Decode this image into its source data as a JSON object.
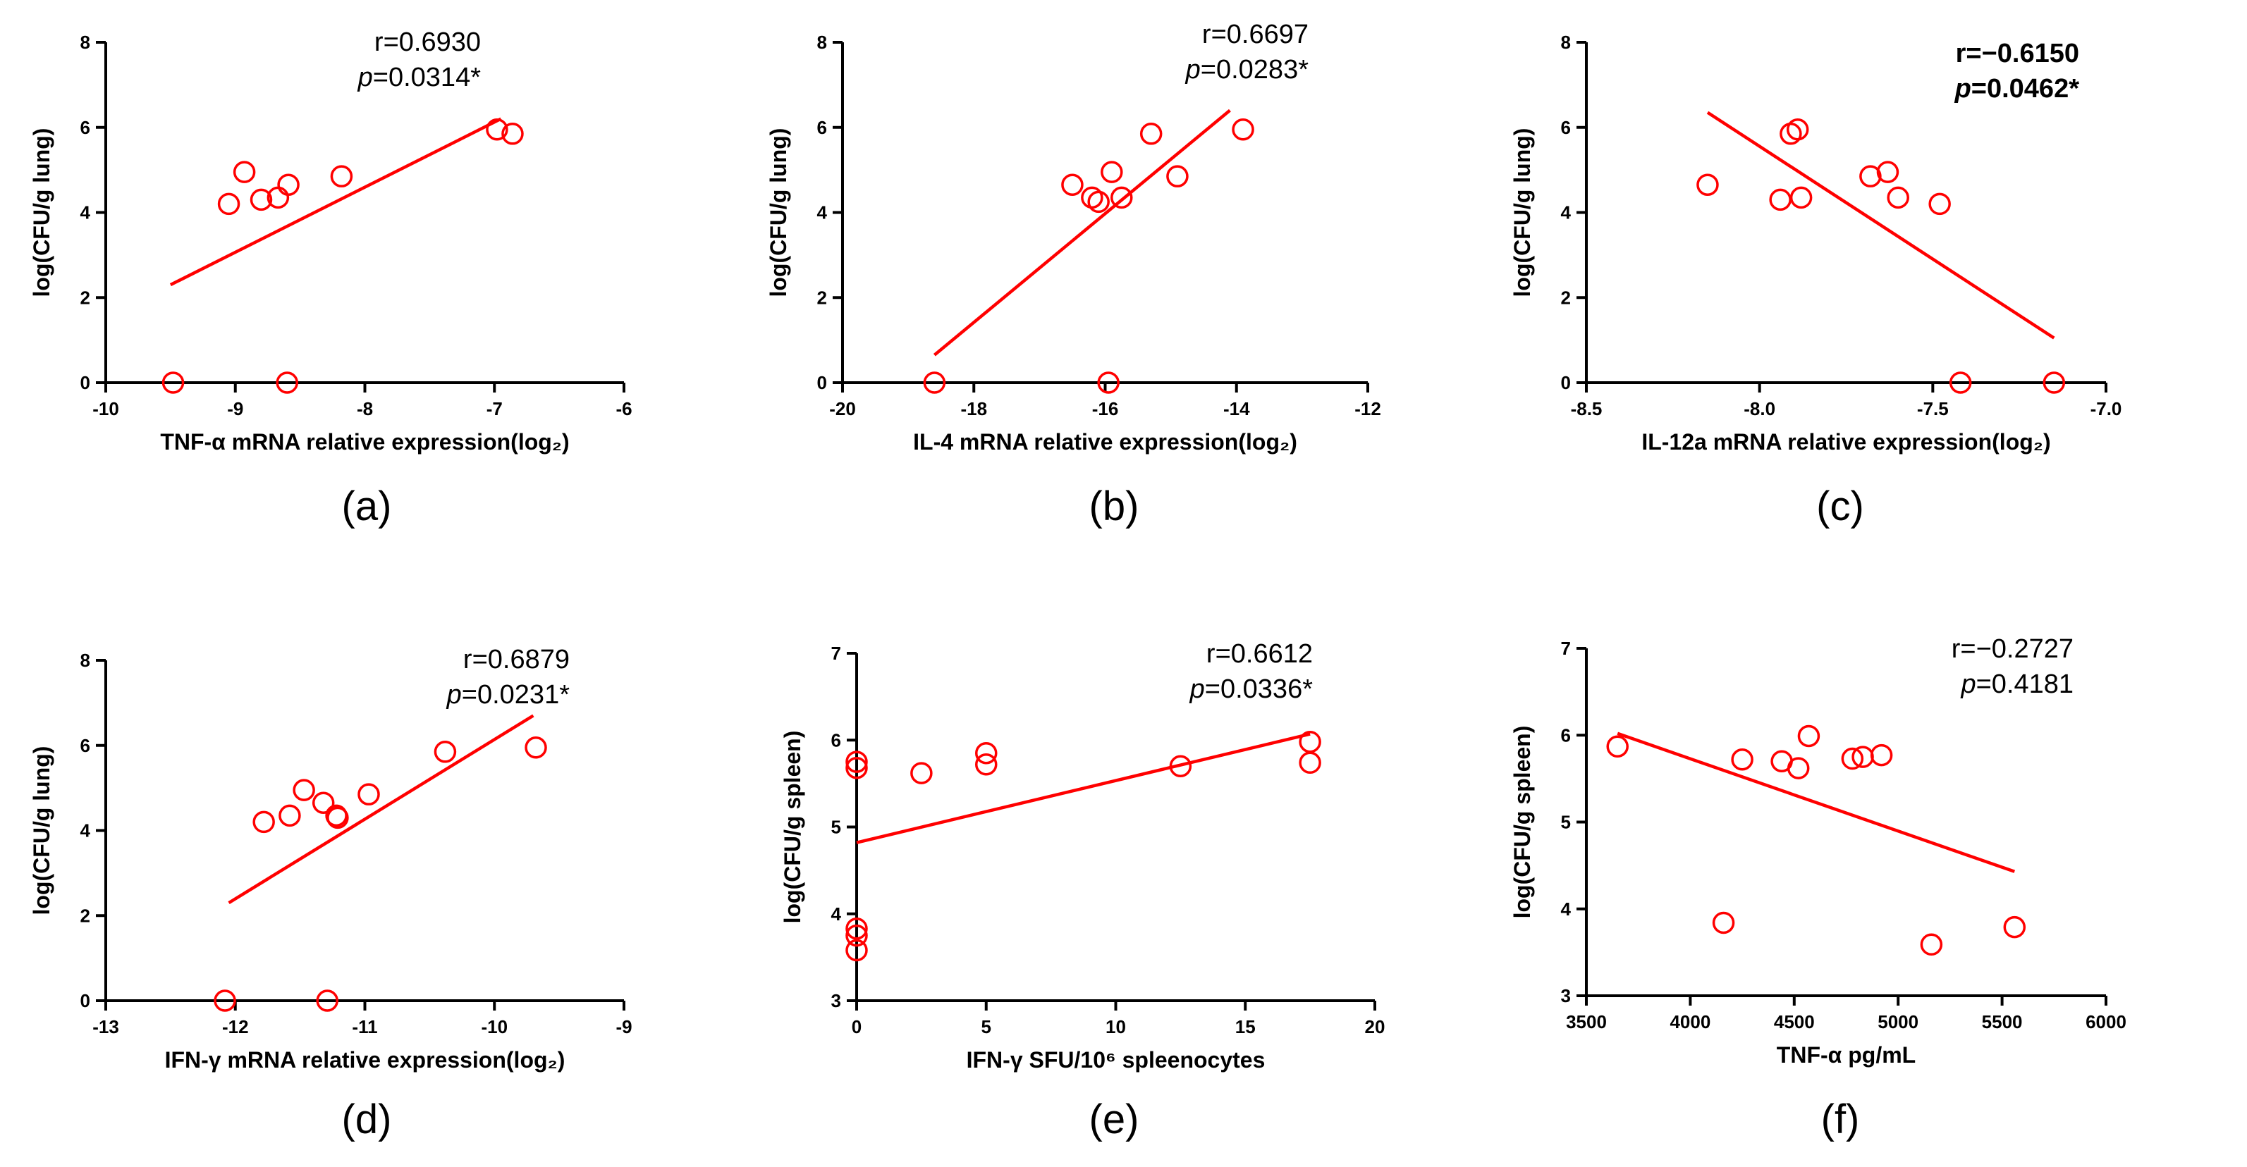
{
  "chart_data": [
    {
      "type": "scatter",
      "panel_label": "(a)",
      "xlabel": "TNF-α mRNA relative expression(log₂)",
      "ylabel": "log(CFU/g lung)",
      "xlim": [
        -10,
        -6
      ],
      "ylim": [
        0,
        8
      ],
      "xticks": [
        -10,
        -9,
        -8,
        -7,
        -6
      ],
      "yticks": [
        0,
        2,
        4,
        6,
        8
      ],
      "stats": {
        "r": "r=0.6930",
        "p_prefix": "p",
        "p_value": "=0.0314*",
        "bold": false
      },
      "points": [
        {
          "x": -9.48,
          "y": 0.0
        },
        {
          "x": -9.05,
          "y": 4.2
        },
        {
          "x": -8.93,
          "y": 4.95
        },
        {
          "x": -8.8,
          "y": 4.3
        },
        {
          "x": -8.67,
          "y": 4.35
        },
        {
          "x": -8.59,
          "y": 4.65
        },
        {
          "x": -8.6,
          "y": 0.0
        },
        {
          "x": -8.18,
          "y": 4.85
        },
        {
          "x": -6.98,
          "y": 5.95
        },
        {
          "x": -6.86,
          "y": 5.85
        }
      ],
      "fit": {
        "x": [
          -9.5,
          -6.95
        ],
        "y": [
          2.3,
          6.2
        ]
      }
    },
    {
      "type": "scatter",
      "panel_label": "(b)",
      "xlabel": "IL-4 mRNA relative expression(log₂)",
      "ylabel": "log(CFU/g lung)",
      "xlim": [
        -20,
        -12
      ],
      "ylim": [
        0,
        8
      ],
      "xticks": [
        -20,
        -18,
        -16,
        -14,
        -12
      ],
      "yticks": [
        0,
        2,
        4,
        6,
        8
      ],
      "stats": {
        "r": "r=0.6697",
        "p_prefix": "p",
        "p_value": "=0.0283*",
        "bold": false
      },
      "points": [
        {
          "x": -18.6,
          "y": 0.0
        },
        {
          "x": -16.5,
          "y": 4.65
        },
        {
          "x": -16.2,
          "y": 4.35
        },
        {
          "x": -16.1,
          "y": 4.25
        },
        {
          "x": -15.9,
          "y": 4.95
        },
        {
          "x": -15.95,
          "y": 0.0
        },
        {
          "x": -15.75,
          "y": 4.35
        },
        {
          "x": -15.3,
          "y": 5.85
        },
        {
          "x": -14.9,
          "y": 4.85
        },
        {
          "x": -13.9,
          "y": 5.95
        }
      ],
      "fit": {
        "x": [
          -18.6,
          -14.1
        ],
        "y": [
          0.65,
          6.4
        ]
      }
    },
    {
      "type": "scatter",
      "panel_label": "(c)",
      "xlabel": "IL-12a mRNA relative expression(log₂)",
      "ylabel": "log(CFU/g lung)",
      "xlim": [
        -8.5,
        -7.0
      ],
      "ylim": [
        0,
        8
      ],
      "xticks": [
        -8.5,
        -8.0,
        -7.5,
        -7.0
      ],
      "xtick_labels": [
        "-8.5",
        "-8.0",
        "-7.5",
        "-7.0"
      ],
      "yticks": [
        0,
        2,
        4,
        6,
        8
      ],
      "stats": {
        "r": "r=−0.6150",
        "p_prefix": "p",
        "p_value": "=0.0462*",
        "bold": true
      },
      "points": [
        {
          "x": -8.15,
          "y": 4.65
        },
        {
          "x": -7.94,
          "y": 4.3
        },
        {
          "x": -7.91,
          "y": 5.85
        },
        {
          "x": -7.89,
          "y": 5.95
        },
        {
          "x": -7.88,
          "y": 4.35
        },
        {
          "x": -7.68,
          "y": 4.85
        },
        {
          "x": -7.63,
          "y": 4.95
        },
        {
          "x": -7.6,
          "y": 4.35
        },
        {
          "x": -7.48,
          "y": 4.2
        },
        {
          "x": -7.42,
          "y": 0.0
        },
        {
          "x": -7.15,
          "y": 0.0
        }
      ],
      "fit": {
        "x": [
          -8.15,
          -7.15
        ],
        "y": [
          6.35,
          1.05
        ]
      }
    },
    {
      "type": "scatter",
      "panel_label": "(d)",
      "xlabel": "IFN-γ mRNA relative expression(log₂)",
      "ylabel": "log(CFU/g lung)",
      "xlim": [
        -13,
        -9
      ],
      "ylim": [
        0,
        8
      ],
      "xticks": [
        -13,
        -12,
        -11,
        -10,
        -9
      ],
      "yticks": [
        0,
        2,
        4,
        6,
        8
      ],
      "stats": {
        "r": "r=0.6879",
        "p_prefix": "p",
        "p_value": "=0.0231*",
        "bold": false
      },
      "points": [
        {
          "x": -12.08,
          "y": 0.0
        },
        {
          "x": -11.78,
          "y": 4.2
        },
        {
          "x": -11.58,
          "y": 4.35
        },
        {
          "x": -11.47,
          "y": 4.95
        },
        {
          "x": -11.32,
          "y": 4.65
        },
        {
          "x": -11.29,
          "y": 0.0
        },
        {
          "x": -11.22,
          "y": 4.35
        },
        {
          "x": -11.21,
          "y": 4.3
        },
        {
          "x": -10.97,
          "y": 4.85
        },
        {
          "x": -10.38,
          "y": 5.85
        },
        {
          "x": -9.68,
          "y": 5.95
        }
      ],
      "fit": {
        "x": [
          -12.05,
          -9.7
        ],
        "y": [
          2.3,
          6.7
        ]
      }
    },
    {
      "type": "scatter",
      "panel_label": "(e)",
      "xlabel": "IFN-γ SFU/10⁶ spleenocytes",
      "ylabel": "log(CFU/g spleen)",
      "xlim": [
        0,
        20
      ],
      "ylim": [
        3,
        7
      ],
      "xticks": [
        0,
        5,
        10,
        15,
        20
      ],
      "yticks": [
        3,
        4,
        5,
        6,
        7
      ],
      "stats": {
        "r": "r=0.6612",
        "p_prefix": "p",
        "p_value": "=0.0336*",
        "bold": false
      },
      "points": [
        {
          "x": 0,
          "y": 5.75
        },
        {
          "x": 0,
          "y": 5.68
        },
        {
          "x": 0,
          "y": 3.83
        },
        {
          "x": 0,
          "y": 3.75
        },
        {
          "x": 0,
          "y": 3.58
        },
        {
          "x": 2.5,
          "y": 5.62
        },
        {
          "x": 5,
          "y": 5.85
        },
        {
          "x": 5,
          "y": 5.72
        },
        {
          "x": 12.5,
          "y": 5.7
        },
        {
          "x": 17.5,
          "y": 5.98
        },
        {
          "x": 17.5,
          "y": 5.74
        }
      ],
      "fit": {
        "x": [
          0,
          17.5
        ],
        "y": [
          4.82,
          6.07
        ]
      }
    },
    {
      "type": "scatter",
      "panel_label": "(f)",
      "xlabel": "TNF-α pg/mL",
      "ylabel": "log(CFU/g spleen)",
      "xlim": [
        3500,
        6000
      ],
      "ylim": [
        3,
        7
      ],
      "xticks": [
        3500,
        4000,
        4500,
        5000,
        5500,
        6000
      ],
      "yticks": [
        3,
        4,
        5,
        6,
        7
      ],
      "stats": {
        "r": "r=−0.2727",
        "p_prefix": "p",
        "p_value": "=0.4181",
        "bold": false
      },
      "points": [
        {
          "x": 3650,
          "y": 5.87
        },
        {
          "x": 4160,
          "y": 3.84
        },
        {
          "x": 4250,
          "y": 5.72
        },
        {
          "x": 4440,
          "y": 5.7
        },
        {
          "x": 4520,
          "y": 5.62
        },
        {
          "x": 4570,
          "y": 5.99
        },
        {
          "x": 4780,
          "y": 5.73
        },
        {
          "x": 4830,
          "y": 5.75
        },
        {
          "x": 4920,
          "y": 5.77
        },
        {
          "x": 5160,
          "y": 3.59
        },
        {
          "x": 5560,
          "y": 3.79
        }
      ],
      "fit": {
        "x": [
          3650,
          5560
        ],
        "y": [
          6.02,
          4.43
        ]
      }
    }
  ]
}
